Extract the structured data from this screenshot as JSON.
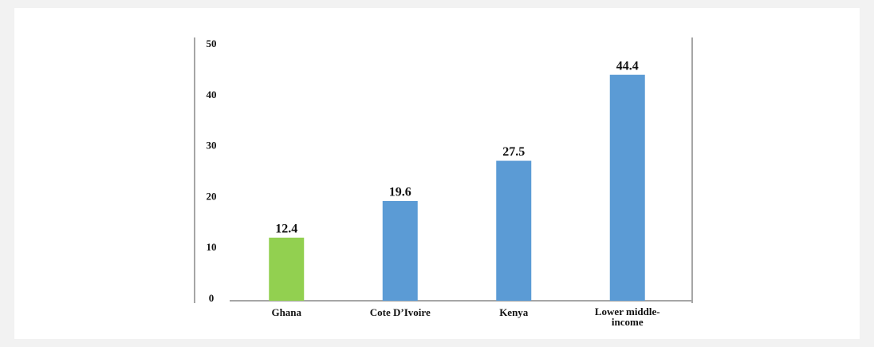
{
  "chart_data": {
    "type": "bar",
    "categories": [
      "Ghana",
      "Cote D’Ivoire",
      "Kenya",
      "Lower middle-income"
    ],
    "values": [
      12.4,
      19.6,
      27.5,
      44.4
    ],
    "colors": [
      "#92d050",
      "#5b9bd5",
      "#5b9bd5",
      "#5b9bd5"
    ],
    "ylim": [
      0,
      50
    ],
    "yticks": [
      0,
      10,
      20,
      30,
      40,
      50
    ],
    "grid": false
  }
}
